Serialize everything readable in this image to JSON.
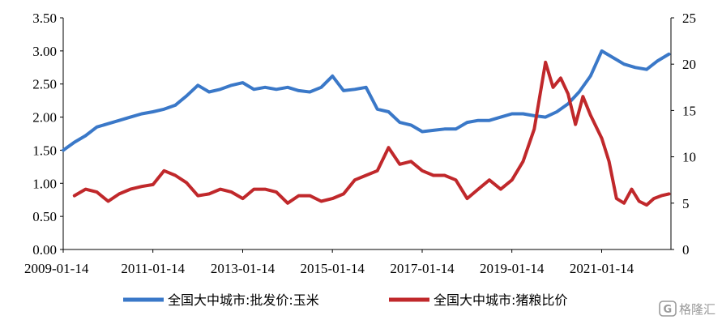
{
  "chart_data": {
    "type": "line",
    "title": "",
    "xlabel": "",
    "x_ticks": [
      "2009-01-14",
      "2011-01-14",
      "2013-01-14",
      "2015-01-14",
      "2017-01-14",
      "2019-01-14",
      "2021-01-14"
    ],
    "left_axis": {
      "ylim": [
        0,
        3.5
      ],
      "ticks": [
        "0.00",
        "0.50",
        "1.00",
        "1.50",
        "2.00",
        "2.50",
        "3.00",
        "3.50"
      ]
    },
    "right_axis": {
      "ylim": [
        0,
        25
      ],
      "ticks": [
        "0",
        "5",
        "10",
        "15",
        "20",
        "25"
      ]
    },
    "legend_position": "bottom",
    "grid": false,
    "series": [
      {
        "name": "全国大中城市:批发价:玉米",
        "axis": "left",
        "color": "#3a78c8",
        "x": [
          "2009-01",
          "2009-04",
          "2009-07",
          "2009-10",
          "2010-01",
          "2010-04",
          "2010-07",
          "2010-10",
          "2011-01",
          "2011-04",
          "2011-07",
          "2011-10",
          "2012-01",
          "2012-04",
          "2012-07",
          "2012-10",
          "2013-01",
          "2013-04",
          "2013-07",
          "2013-10",
          "2014-01",
          "2014-04",
          "2014-07",
          "2014-10",
          "2015-01",
          "2015-04",
          "2015-07",
          "2015-10",
          "2016-01",
          "2016-04",
          "2016-07",
          "2016-10",
          "2017-01",
          "2017-04",
          "2017-07",
          "2017-10",
          "2018-01",
          "2018-04",
          "2018-07",
          "2018-10",
          "2019-01",
          "2019-04",
          "2019-07",
          "2019-10",
          "2020-01",
          "2020-04",
          "2020-07",
          "2020-10",
          "2021-01",
          "2021-04",
          "2021-07",
          "2021-10",
          "2022-01",
          "2022-04",
          "2022-07"
        ],
        "values": [
          1.5,
          1.62,
          1.72,
          1.85,
          1.9,
          1.95,
          2.0,
          2.05,
          2.08,
          2.12,
          2.18,
          2.32,
          2.48,
          2.38,
          2.42,
          2.48,
          2.52,
          2.42,
          2.45,
          2.42,
          2.45,
          2.4,
          2.38,
          2.45,
          2.62,
          2.4,
          2.42,
          2.45,
          2.12,
          2.08,
          1.92,
          1.88,
          1.78,
          1.8,
          1.82,
          1.82,
          1.92,
          1.95,
          1.95,
          2.0,
          2.05,
          2.05,
          2.02,
          2.0,
          2.08,
          2.2,
          2.38,
          2.62,
          3.0,
          2.9,
          2.8,
          2.75,
          2.72,
          2.85,
          2.95
        ]
      },
      {
        "name": "全国大中城市:猪粮比价",
        "axis": "right",
        "color": "#c0282b",
        "x": [
          "2009-04",
          "2009-07",
          "2009-10",
          "2010-01",
          "2010-04",
          "2010-07",
          "2010-10",
          "2011-01",
          "2011-04",
          "2011-07",
          "2011-10",
          "2012-01",
          "2012-04",
          "2012-07",
          "2012-10",
          "2013-01",
          "2013-04",
          "2013-07",
          "2013-10",
          "2014-01",
          "2014-04",
          "2014-07",
          "2014-10",
          "2015-01",
          "2015-04",
          "2015-07",
          "2015-10",
          "2016-01",
          "2016-04",
          "2016-07",
          "2016-10",
          "2017-01",
          "2017-04",
          "2017-07",
          "2017-10",
          "2018-01",
          "2018-04",
          "2018-07",
          "2018-10",
          "2019-01",
          "2019-04",
          "2019-07",
          "2019-10",
          "2019-12",
          "2020-02",
          "2020-04",
          "2020-06",
          "2020-08",
          "2020-10",
          "2021-01",
          "2021-03",
          "2021-05",
          "2021-07",
          "2021-09",
          "2021-11",
          "2022-01",
          "2022-03",
          "2022-05",
          "2022-07"
        ],
        "values": [
          5.8,
          6.5,
          6.2,
          5.2,
          6.0,
          6.5,
          6.8,
          7.0,
          8.5,
          8.0,
          7.2,
          5.8,
          6.0,
          6.5,
          6.2,
          5.5,
          6.5,
          6.5,
          6.2,
          5.0,
          5.8,
          5.8,
          5.2,
          5.5,
          6.0,
          7.5,
          8.0,
          8.5,
          11.0,
          9.2,
          9.5,
          8.5,
          8.0,
          8.0,
          7.5,
          5.5,
          6.5,
          7.5,
          6.5,
          7.5,
          9.5,
          13.0,
          20.2,
          17.5,
          18.5,
          16.8,
          13.5,
          16.5,
          14.5,
          12.0,
          9.5,
          5.5,
          5.0,
          6.5,
          5.2,
          4.8,
          5.5,
          5.8,
          6.0
        ]
      }
    ]
  },
  "watermark": "格隆汇"
}
